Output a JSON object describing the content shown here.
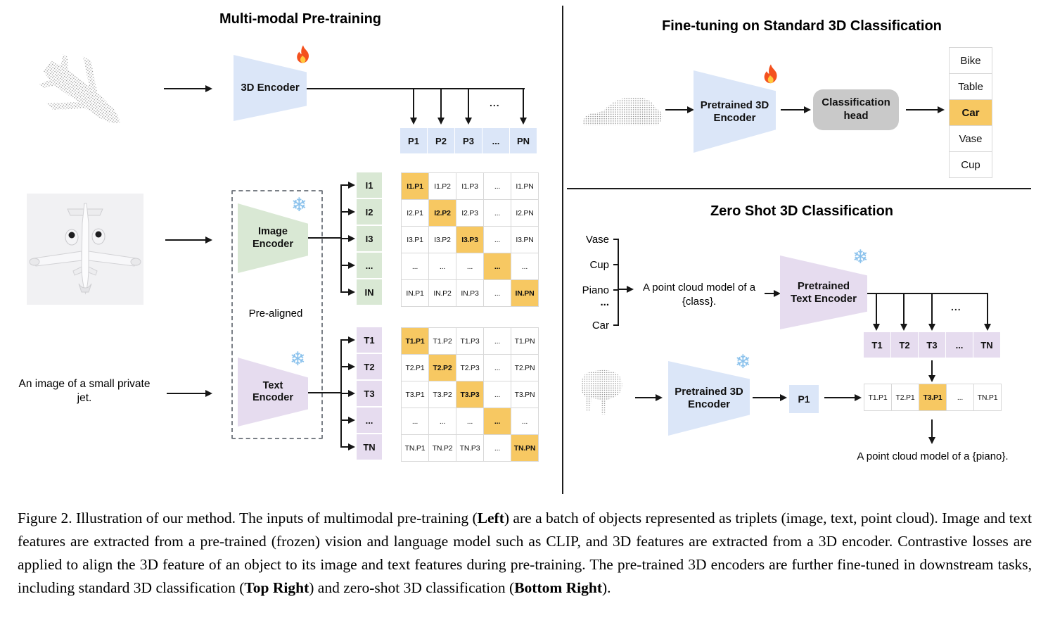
{
  "ellipsis": "...",
  "colors": {
    "blue": "#DBE6F8",
    "green": "#D9E8D4",
    "purple": "#E6DCEF",
    "orange": "#F7C862",
    "head_gray": "#C9C9C9",
    "cell_border": "#D8D8D8"
  },
  "icons": {
    "trainable": "fire-icon",
    "frozen": "snowflake-icon",
    "snowflake_glyph": "❄"
  },
  "pretraining": {
    "title": "Multi-modal Pre-training",
    "input_text": "An image of a small private jet.",
    "encoder_3d": {
      "label": "3D Encoder"
    },
    "image_encoder": {
      "label": "Image Encoder"
    },
    "text_encoder": {
      "label": "Text Encoder"
    },
    "pre_aligned_label": "Pre-aligned",
    "p_row": [
      "P1",
      "P2",
      "P3",
      "...",
      "PN"
    ],
    "image_rows": [
      "I1",
      "I2",
      "I3",
      "...",
      "IN"
    ],
    "text_rows": [
      "T1",
      "T2",
      "T3",
      "...",
      "TN"
    ],
    "image_matrix": [
      [
        "I1.P1",
        "I1.P2",
        "I1.P3",
        "...",
        "I1.PN"
      ],
      [
        "I2.P1",
        "I2.P2",
        "I2.P3",
        "...",
        "I2.PN"
      ],
      [
        "I3.P1",
        "I3.P2",
        "I3.P3",
        "...",
        "I3.PN"
      ],
      [
        "...",
        "...",
        "...",
        "...",
        "..."
      ],
      [
        "IN.P1",
        "IN.P2",
        "IN.P3",
        "...",
        "IN.PN"
      ]
    ],
    "text_matrix": [
      [
        "T1.P1",
        "T1.P2",
        "T1.P3",
        "...",
        "T1.PN"
      ],
      [
        "T2.P1",
        "T2.P2",
        "T2.P3",
        "...",
        "T2.PN"
      ],
      [
        "T3.P1",
        "T3.P2",
        "T3.P3",
        "...",
        "T3.PN"
      ],
      [
        "...",
        "...",
        "...",
        "...",
        "..."
      ],
      [
        "TN.P1",
        "TN.P2",
        "TN.P3",
        "...",
        "TN.PN"
      ]
    ]
  },
  "finetuning": {
    "title": "Fine-tuning on Standard 3D Classification",
    "encoder": {
      "label": "Pretrained 3D Encoder"
    },
    "head": {
      "label": "Classification head"
    },
    "classes": [
      "Bike",
      "Table",
      "Car",
      "Vase",
      "Cup"
    ],
    "predicted_class": "Car"
  },
  "zeroshot": {
    "title": "Zero Shot 3D Classification",
    "class_list": [
      "Vase",
      "Cup",
      "Piano",
      "...",
      "Car"
    ],
    "prompt": "A point cloud model of a {class}.",
    "text_encoder": {
      "label": "Pretrained Text Encoder"
    },
    "encoder_3d": {
      "label": "Pretrained 3D Encoder"
    },
    "p_cell": "P1",
    "t_row": [
      "T1",
      "T2",
      "T3",
      "...",
      "TN"
    ],
    "tp_row": [
      "T1.P1",
      "T2.P1",
      "T3.P1",
      "...",
      "TN.P1"
    ],
    "tp_highlight": "T3.P1",
    "result_text": "A point cloud model of a {piano}."
  },
  "caption": {
    "segments": [
      {
        "text": "Figure 2. Illustration of our method.  The inputs of multimodal pre-training (",
        "bold": false
      },
      {
        "text": "Left",
        "bold": true
      },
      {
        "text": ") are a batch of objects represented as triplets (image, text, point cloud).  Image and text features are extracted from a pre-trained (frozen) vision and language model such as CLIP, and 3D features are extracted from a 3D encoder.  Contrastive losses are applied to align the 3D feature of an object to its image and text features during pre-training.  The pre-trained 3D encoders are further fine-tuned in downstream tasks, including standard 3D classification (",
        "bold": false
      },
      {
        "text": "Top Right",
        "bold": true
      },
      {
        "text": ") and zero-shot 3D classification (",
        "bold": false
      },
      {
        "text": "Bottom Right",
        "bold": true
      },
      {
        "text": ").",
        "bold": false
      }
    ]
  }
}
